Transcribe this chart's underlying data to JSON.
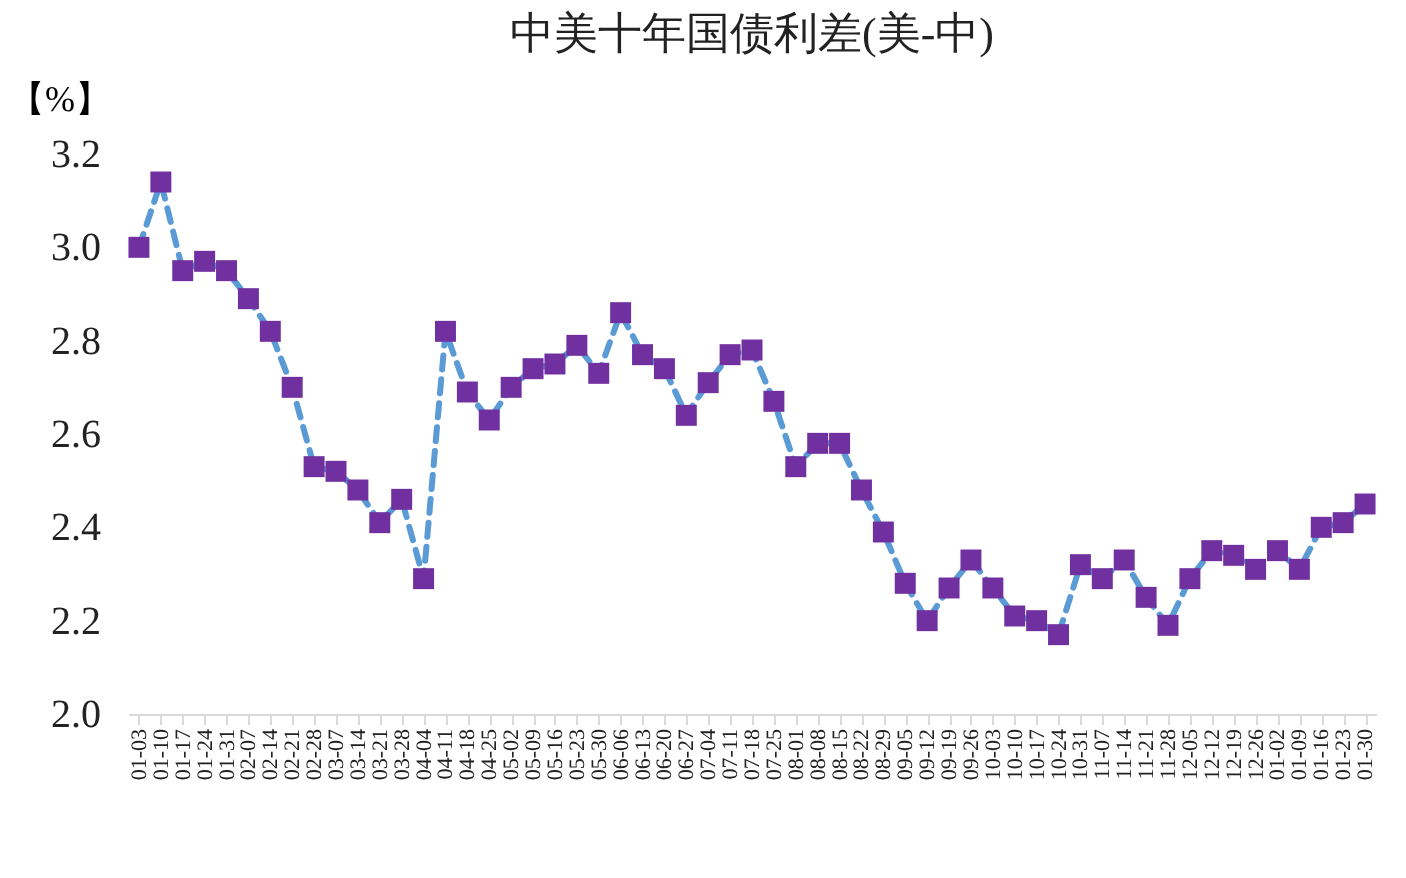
{
  "chart_data": {
    "type": "line",
    "title": "中美十年国债利差(美-中)",
    "ylabel": "【%】",
    "categories": [
      "01-03",
      "01-10",
      "01-17",
      "01-24",
      "01-31",
      "02-07",
      "02-14",
      "02-21",
      "02-28",
      "03-07",
      "03-14",
      "03-21",
      "03-28",
      "04-04",
      "04-11",
      "04-18",
      "04-25",
      "05-02",
      "05-09",
      "05-16",
      "05-23",
      "05-30",
      "06-06",
      "06-13",
      "06-20",
      "06-27",
      "07-04",
      "07-11",
      "07-18",
      "07-25",
      "08-01",
      "08-08",
      "08-15",
      "08-22",
      "08-29",
      "09-05",
      "09-12",
      "09-19",
      "09-26",
      "10-03",
      "10-10",
      "10-17",
      "10-24",
      "10-31",
      "11-07",
      "11-14",
      "11-21",
      "11-28",
      "12-05",
      "12-12",
      "12-19",
      "12-26",
      "01-02",
      "01-09",
      "01-16",
      "01-23",
      "01-30"
    ],
    "series": [
      {
        "color": "#5b9bd5",
        "colors": [
          "#7030a0",
          "#7030a0",
          "#7030a0",
          "#7030a0",
          "#7030a0",
          "#7030a0",
          "#7030a0",
          "#7030a0",
          "#7030a0",
          "#7030a0",
          "#7030a0",
          "#7030a0",
          "#7030a0",
          "#7030a0",
          "#7030a0",
          "#7030a0",
          "#7030a0",
          "#7030a0",
          "#7030a0",
          "#7030a0",
          "#7030a0",
          "#7030a0",
          "#7030a0",
          "#7030a0",
          "#7030a0",
          "#7030a0",
          "#7030a0",
          "#7030a0",
          "#7030a0",
          "#7030a0",
          "#7030a0",
          "#7030a0",
          "#7030a0",
          "#7030a0",
          "#7030a0",
          "#7030a0",
          "#7030a0",
          "#7030a0",
          "#7030a0",
          "#7030a0",
          "#7030a0",
          "#7030a0",
          "#7030a0",
          "#7030a0",
          "#7030a0",
          "#7030a0",
          "#7030a0",
          "#7030a0",
          "#7030a0",
          "#7030a0",
          "#7030a0",
          "#7030a0",
          "#7030a0",
          "#7030a0",
          "#7030a0",
          "#7030a0",
          "#7030a0"
        ],
        "values": [
          3.0,
          3.14,
          2.95,
          2.97,
          2.95,
          2.89,
          2.82,
          2.7,
          2.53,
          2.52,
          2.48,
          2.41,
          2.46,
          2.29,
          2.82,
          2.69,
          2.63,
          2.7,
          2.74,
          2.75,
          2.79,
          2.73,
          2.86,
          2.77,
          2.74,
          2.64,
          2.71,
          2.77,
          2.78,
          2.67,
          2.53,
          2.58,
          2.58,
          2.48,
          2.39,
          2.28,
          2.2,
          2.27,
          2.33,
          2.27,
          2.21,
          2.2,
          2.17,
          2.32,
          2.29,
          2.33,
          2.25,
          2.19,
          2.29,
          2.35,
          2.34,
          2.31,
          2.35,
          2.31,
          2.4,
          2.41,
          2.45
        ]
      }
    ],
    "ylim": [
      2.0,
      3.2
    ],
    "yticks": [
      {
        "value": 2.0,
        "label": "2.0"
      },
      {
        "value": 2.2,
        "label": "2.2"
      },
      {
        "value": 2.4,
        "label": "2.4"
      },
      {
        "value": 2.6,
        "label": "2.6"
      },
      {
        "value": 2.8,
        "label": "2.8"
      },
      {
        "value": 3.0,
        "label": "3.0"
      },
      {
        "value": 3.2,
        "label": "3.2"
      }
    ],
    "grid": false,
    "marker": "square",
    "line_style": "dashed"
  }
}
